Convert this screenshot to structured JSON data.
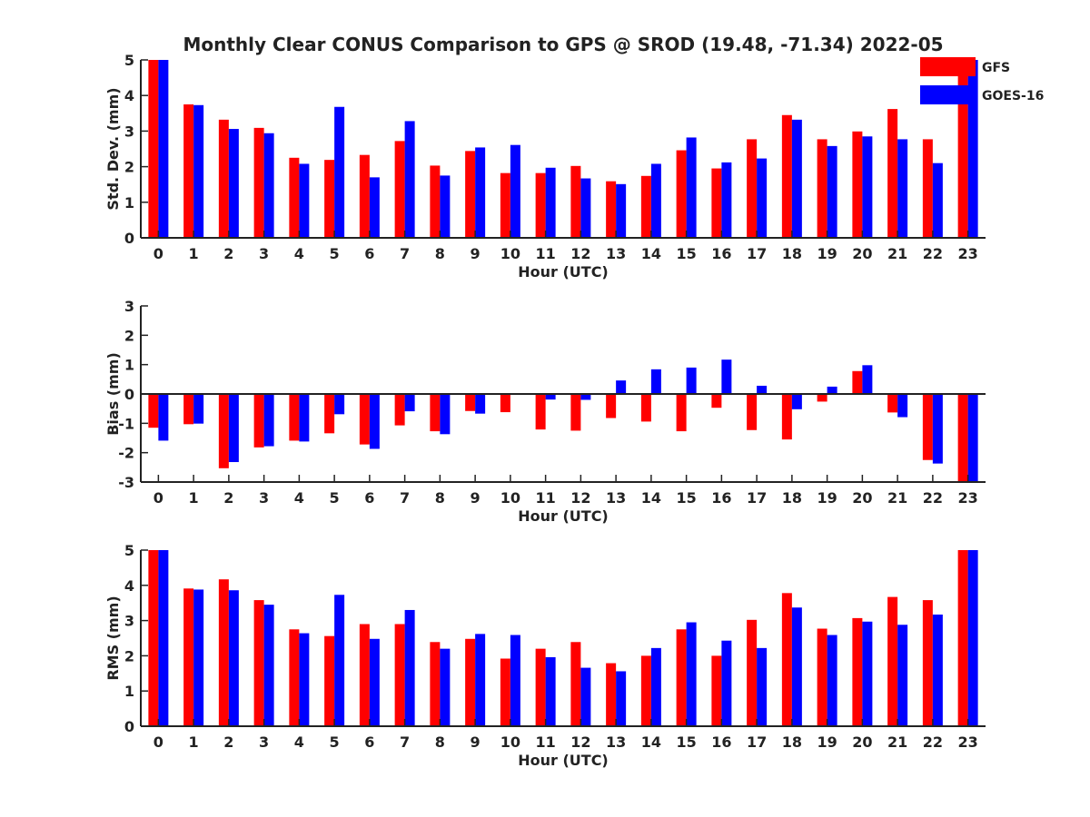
{
  "title": "Monthly Clear CONUS Comparison to GPS @ SROD (19.48, -71.34) 2022-05",
  "legend": {
    "position": "top-right",
    "entries": [
      {
        "name": "GFS",
        "color": "#ff0000"
      },
      {
        "name": "GOES-16",
        "color": "#0000ff"
      }
    ]
  },
  "chart_data": [
    {
      "type": "bar",
      "title": "Monthly Clear CONUS Comparison to GPS @ SROD (19.48, -71.34) 2022-05",
      "xlabel": "Hour (UTC)",
      "ylabel": "Std. Dev. (mm)",
      "ylim": [
        0,
        5
      ],
      "yticks": [
        0,
        1,
        2,
        3,
        4,
        5
      ],
      "categories": [
        "0",
        "1",
        "2",
        "3",
        "4",
        "5",
        "6",
        "7",
        "8",
        "9",
        "10",
        "11",
        "12",
        "13",
        "14",
        "15",
        "16",
        "17",
        "18",
        "19",
        "20",
        "21",
        "22",
        "23"
      ],
      "series": [
        {
          "name": "GFS",
          "color": "#ff0000",
          "values": [
            5.0,
            3.75,
            3.32,
            3.09,
            2.25,
            2.19,
            2.33,
            2.72,
            2.03,
            2.44,
            1.82,
            1.82,
            2.02,
            1.59,
            1.74,
            2.46,
            1.95,
            2.77,
            3.45,
            2.77,
            2.99,
            3.62,
            2.77,
            5.0
          ]
        },
        {
          "name": "GOES-16",
          "color": "#0000ff",
          "values": [
            5.0,
            3.73,
            3.06,
            2.94,
            2.08,
            3.68,
            1.7,
            3.28,
            1.75,
            2.54,
            2.61,
            1.97,
            1.67,
            1.51,
            2.08,
            2.82,
            2.12,
            2.23,
            3.32,
            2.58,
            2.85,
            2.77,
            2.1,
            5.0
          ]
        }
      ]
    },
    {
      "type": "bar",
      "xlabel": "Hour (UTC)",
      "ylabel": "Bias (mm)",
      "ylim": [
        -3,
        3
      ],
      "yticks": [
        -3,
        -2,
        -1,
        0,
        1,
        2,
        3
      ],
      "categories": [
        "0",
        "1",
        "2",
        "3",
        "4",
        "5",
        "6",
        "7",
        "8",
        "9",
        "10",
        "11",
        "12",
        "13",
        "14",
        "15",
        "16",
        "17",
        "18",
        "19",
        "20",
        "21",
        "22",
        "23"
      ],
      "series": [
        {
          "name": "GFS",
          "color": "#ff0000",
          "values": [
            -1.15,
            -1.03,
            -2.53,
            -1.82,
            -1.59,
            -1.34,
            -1.72,
            -1.07,
            -1.27,
            -0.58,
            -0.62,
            -1.21,
            -1.25,
            -0.82,
            -0.94,
            -1.27,
            -0.47,
            -1.23,
            -1.55,
            -0.26,
            0.78,
            -0.63,
            -2.25,
            -3.0
          ]
        },
        {
          "name": "GOES-16",
          "color": "#0000ff",
          "values": [
            -1.59,
            -1.01,
            -2.32,
            -1.78,
            -1.62,
            -0.69,
            -1.87,
            -0.59,
            -1.37,
            -0.67,
            0.0,
            -0.19,
            -0.2,
            0.46,
            0.84,
            0.9,
            1.17,
            0.28,
            -0.52,
            0.25,
            0.98,
            -0.79,
            -2.37,
            -3.0
          ]
        }
      ]
    },
    {
      "type": "bar",
      "xlabel": "Hour (UTC)",
      "ylabel": "RMS (mm)",
      "ylim": [
        0,
        5
      ],
      "yticks": [
        0,
        1,
        2,
        3,
        4,
        5
      ],
      "categories": [
        "0",
        "1",
        "2",
        "3",
        "4",
        "5",
        "6",
        "7",
        "8",
        "9",
        "10",
        "11",
        "12",
        "13",
        "14",
        "15",
        "16",
        "17",
        "18",
        "19",
        "20",
        "21",
        "22",
        "23"
      ],
      "series": [
        {
          "name": "GFS",
          "color": "#ff0000",
          "values": [
            5.0,
            3.91,
            4.17,
            3.58,
            2.75,
            2.56,
            2.9,
            2.9,
            2.39,
            2.48,
            1.92,
            2.2,
            2.39,
            1.79,
            2.0,
            2.75,
            2.0,
            3.02,
            3.78,
            2.77,
            3.07,
            3.67,
            3.58,
            5.0
          ]
        },
        {
          "name": "GOES-16",
          "color": "#0000ff",
          "values": [
            5.0,
            3.88,
            3.86,
            3.45,
            2.64,
            3.73,
            2.48,
            3.3,
            2.2,
            2.62,
            2.59,
            1.96,
            1.66,
            1.56,
            2.22,
            2.95,
            2.43,
            2.22,
            3.37,
            2.59,
            2.97,
            2.88,
            3.17,
            5.0
          ]
        }
      ]
    }
  ]
}
